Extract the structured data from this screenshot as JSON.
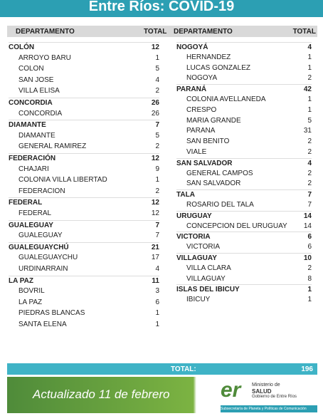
{
  "header": {
    "title": "Entre Ríos: COVID-19"
  },
  "table": {
    "columns": [
      "DEPARTAMENTO",
      "TOTAL",
      "DEPARTAMENTO",
      "TOTAL"
    ],
    "left": [
      {
        "name": "COLÓN",
        "total": 12,
        "localities": [
          {
            "name": "ARROYO BARU",
            "total": 1
          },
          {
            "name": "COLON",
            "total": 5
          },
          {
            "name": "SAN JOSE",
            "total": 4
          },
          {
            "name": "VILLA ELISA",
            "total": 2
          }
        ]
      },
      {
        "name": "CONCORDIA",
        "total": 26,
        "localities": [
          {
            "name": "CONCORDIA",
            "total": 26
          }
        ]
      },
      {
        "name": "DIAMANTE",
        "total": 7,
        "localities": [
          {
            "name": "DIAMANTE",
            "total": 5
          },
          {
            "name": "GENERAL RAMIREZ",
            "total": 2
          }
        ]
      },
      {
        "name": "FEDERACIÓN",
        "total": 12,
        "localities": [
          {
            "name": "CHAJARI",
            "total": 9
          },
          {
            "name": "COLONIA VILLA LIBERTAD",
            "total": 1
          },
          {
            "name": "FEDERACION",
            "total": 2
          }
        ]
      },
      {
        "name": "FEDERAL",
        "total": 12,
        "localities": [
          {
            "name": "FEDERAL",
            "total": 12
          }
        ]
      },
      {
        "name": "GUALEGUAY",
        "total": 7,
        "localities": [
          {
            "name": "GUALEGUAY",
            "total": 7
          }
        ]
      },
      {
        "name": "GUALEGUAYCHÚ",
        "total": 21,
        "localities": [
          {
            "name": "GUALEGUAYCHU",
            "total": 17
          },
          {
            "name": "URDINARRAIN",
            "total": 4
          }
        ]
      },
      {
        "name": "LA PAZ",
        "total": 11,
        "localities": [
          {
            "name": "BOVRIL",
            "total": 3
          },
          {
            "name": "LA PAZ",
            "total": 6
          },
          {
            "name": "PIEDRAS BLANCAS",
            "total": 1
          },
          {
            "name": "SANTA ELENA",
            "total": 1
          }
        ]
      }
    ],
    "right": [
      {
        "name": "NOGOYÁ",
        "total": 4,
        "localities": [
          {
            "name": "HERNANDEZ",
            "total": 1
          },
          {
            "name": "LUCAS GONZALEZ",
            "total": 1
          },
          {
            "name": "NOGOYA",
            "total": 2
          }
        ]
      },
      {
        "name": "PARANÁ",
        "total": 42,
        "localities": [
          {
            "name": "COLONIA AVELLANEDA",
            "total": 1
          },
          {
            "name": "CRESPO",
            "total": 1
          },
          {
            "name": "MARIA GRANDE",
            "total": 5
          },
          {
            "name": "PARANA",
            "total": 31
          },
          {
            "name": "SAN BENITO",
            "total": 2
          },
          {
            "name": "VIALE",
            "total": 2
          }
        ]
      },
      {
        "name": "SAN SALVADOR",
        "total": 4,
        "localities": [
          {
            "name": "GENERAL CAMPOS",
            "total": 2
          },
          {
            "name": "SAN SALVADOR",
            "total": 2
          }
        ]
      },
      {
        "name": "TALA",
        "total": 7,
        "localities": [
          {
            "name": "ROSARIO DEL TALA",
            "total": 7
          }
        ]
      },
      {
        "name": "URUGUAY",
        "total": 14,
        "localities": [
          {
            "name": "CONCEPCION DEL URUGUAY",
            "total": 14
          }
        ]
      },
      {
        "name": "VICTORIA",
        "total": 6,
        "localities": [
          {
            "name": "VICTORIA",
            "total": 6
          }
        ]
      },
      {
        "name": "VILLAGUAY",
        "total": 10,
        "localities": [
          {
            "name": "VILLA CLARA",
            "total": 2
          },
          {
            "name": "VILLAGUAY",
            "total": 8
          }
        ]
      },
      {
        "name": "ISLAS DEL IBICUY",
        "total": 1,
        "localities": [
          {
            "name": "IBICUY",
            "total": 1
          }
        ]
      }
    ],
    "total_label": "TOTAL:",
    "total": 196
  },
  "footer": {
    "updated": "Actualizado 11 de febrero",
    "logo_mark": "er",
    "org_line1": "Ministerio de",
    "org_line2": "SALUD",
    "org_line3": "Gobierno de Entre Ríos",
    "subsecretaria": "Subsecretaría de Planeta y Políticas de Comunicación"
  }
}
